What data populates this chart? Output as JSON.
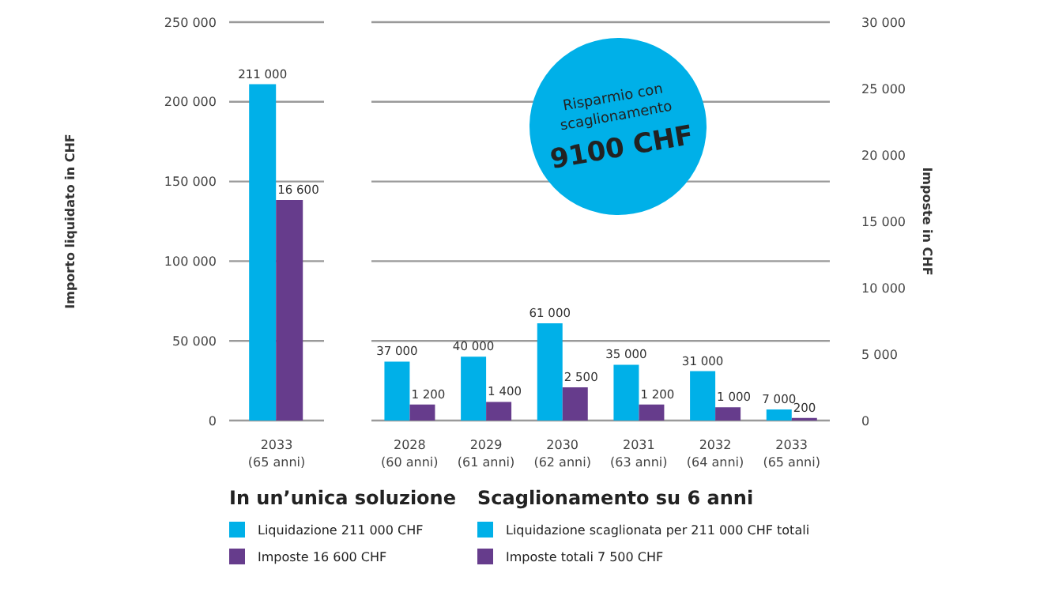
{
  "chart_data": [
    {
      "type": "bar",
      "categories": [
        "2033\n(65 anni)"
      ],
      "ylabel": "Importo liquidato in CHF",
      "ylim": [
        0,
        250000
      ],
      "yticks": [
        {
          "value": 0,
          "label": "0"
        },
        {
          "value": 50000,
          "label": "50 000"
        },
        {
          "value": 100000,
          "label": "100 000"
        },
        {
          "value": 150000,
          "label": "150 000"
        },
        {
          "value": 200000,
          "label": "200 000"
        },
        {
          "value": 250000,
          "label": "250 000"
        }
      ],
      "y2lim": [
        0,
        30000
      ],
      "grid": "y",
      "legend": "bottom",
      "legend_title": "In un’unica soluzione",
      "series": [
        {
          "name": "Liquidazione 211 000 CHF",
          "color": "#00b0e8",
          "values": [
            211000
          ],
          "value_labels": [
            "211 000"
          ]
        },
        {
          "name": "Imposte 16 600 CHF",
          "color": "#663c8c",
          "axis": "y2",
          "values": [
            16600
          ],
          "value_labels": [
            "16 600"
          ]
        }
      ]
    },
    {
      "type": "bar",
      "categories": [
        "2028\n(60 anni)",
        "2029\n(61 anni)",
        "2030\n(62 anni)",
        "2031\n(63 anni)",
        "2032\n(64 anni)",
        "2033\n(65 anni)"
      ],
      "y2label": "Imposte in CHF",
      "ylim": [
        0,
        250000
      ],
      "yticks": [
        {
          "value": 0,
          "label": null
        },
        {
          "value": 50000,
          "label": null
        },
        {
          "value": 100000,
          "label": null
        },
        {
          "value": 150000,
          "label": null
        },
        {
          "value": 200000,
          "label": null
        },
        {
          "value": 250000,
          "label": null
        }
      ],
      "y2lim": [
        0,
        30000
      ],
      "y2ticks": [
        {
          "value": 0,
          "label": "0"
        },
        {
          "value": 5000,
          "label": "5 000"
        },
        {
          "value": 10000,
          "label": "10 000"
        },
        {
          "value": 15000,
          "label": "15 000"
        },
        {
          "value": 20000,
          "label": "20 000"
        },
        {
          "value": 25000,
          "label": "25 000"
        },
        {
          "value": 30000,
          "label": "30 000"
        }
      ],
      "grid": "y",
      "legend": "bottom",
      "legend_title": "Scaglionamento su 6 anni",
      "annotations": [
        "Risparmio con scaglionamento",
        "9100 CHF"
      ],
      "series": [
        {
          "name": "Liquidazione scaglionata per 211 000 CHF totali",
          "color": "#00b0e8",
          "values": [
            37000,
            40000,
            61000,
            35000,
            31000,
            7000
          ],
          "value_labels": [
            "37 000",
            "40 000",
            "61 000",
            "35 000",
            "31 000",
            "7 000"
          ]
        },
        {
          "name": "Imposte totali 7 500 CHF",
          "color": "#663c8c",
          "axis": "y2",
          "values": [
            1200,
            1400,
            2500,
            1200,
            1000,
            200
          ],
          "value_labels": [
            "1 200",
            "1 400",
            "2 500",
            "1 200",
            "1 000",
            "200"
          ]
        }
      ]
    }
  ]
}
